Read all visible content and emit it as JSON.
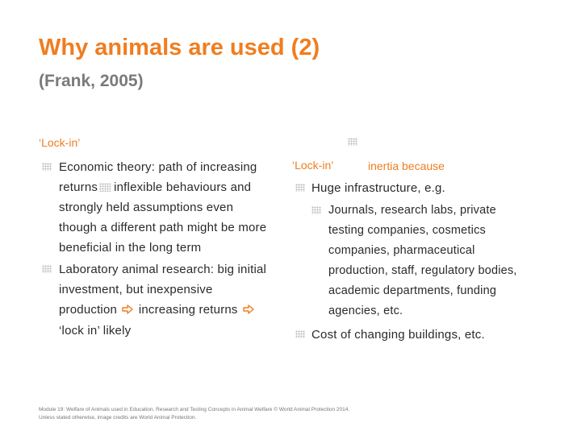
{
  "title": "Why animals are used (2)",
  "subtitle": "(Frank, 2005)",
  "left": {
    "heading": "‘Lock-in’",
    "bullet1": {
      "line1": "Economic theory: path of increasing",
      "line2a": "returns",
      "line2b": "inflexible behaviours and",
      "line3": "strongly held assumptions even",
      "line4": "though a different path might be more",
      "line5": "beneficial in the long term"
    },
    "bullet2": {
      "line1": "Laboratory animal research: big initial",
      "line2": "investment, but inexpensive",
      "line3a": "production",
      "line3b": "increasing returns",
      "line4": "‘lock in’ likely"
    }
  },
  "right": {
    "heading_a": "‘Lock-in’",
    "heading_b": "inertia because",
    "bullet1": "Huge infrastructure, e.g.",
    "sub": {
      "line1": "Journals, research labs, private",
      "line2": "testing companies, cosmetics",
      "line3": "companies, pharmaceutical",
      "line4": "production, staff, regulatory bodies,",
      "line5": "academic departments, funding",
      "line6": "agencies, etc."
    },
    "bullet2": "Cost of changing buildings, etc."
  },
  "footer": {
    "line1": "Module 19: Welfare of Animals used in Education, Research and Testing Concepts in Animal Welfare © World Animal Protection 2014.",
    "line2": "Unless stated otherwise, image credits are World Animal Protection."
  },
  "colors": {
    "accent": "#f07d1f",
    "subtitle": "#7a7a7a",
    "text": "#2a2a2a"
  },
  "icons": [
    "dotted-bullet-icon",
    "hollow-arrow-icon"
  ]
}
